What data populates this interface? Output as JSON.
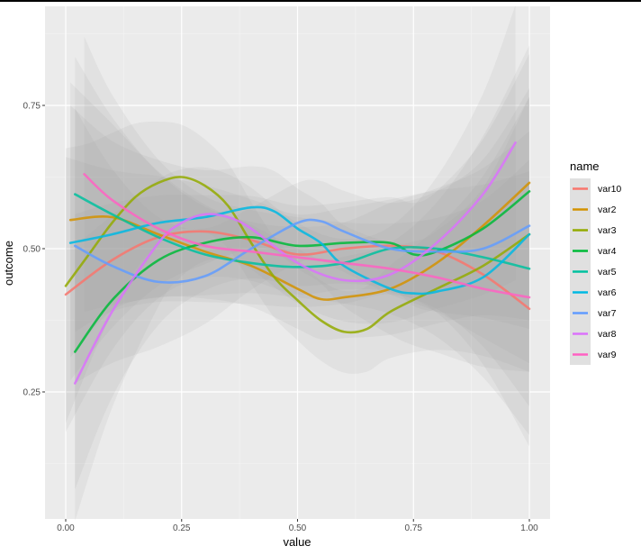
{
  "chart_data": {
    "type": "line",
    "xlabel": "value",
    "ylabel": "outcome",
    "xlim": [
      -0.04,
      1.04
    ],
    "ylim": [
      0.05,
      0.93
    ],
    "x_ticks": [
      0.0,
      0.25,
      0.5,
      0.75,
      1.0
    ],
    "x_tick_labels": [
      "0.00",
      "0.25",
      "0.50",
      "0.75",
      "1.00"
    ],
    "y_ticks": [
      0.25,
      0.5,
      0.75
    ],
    "y_tick_labels": [
      "0.25",
      "0.50",
      "0.75"
    ],
    "grid": true,
    "smoothing": "loess with confidence bands",
    "legend": {
      "title": "name",
      "position": "right",
      "entries": [
        "var10",
        "var2",
        "var3",
        "var4",
        "var5",
        "var6",
        "var7",
        "var8",
        "var9"
      ]
    },
    "series": [
      {
        "name": "var10",
        "color": "#F8766D",
        "x": [
          0.0,
          0.1,
          0.2,
          0.3,
          0.4,
          0.5,
          0.6,
          0.7,
          0.8,
          0.9,
          1.0
        ],
        "y": [
          0.42,
          0.48,
          0.52,
          0.53,
          0.515,
          0.49,
          0.5,
          0.505,
          0.495,
          0.455,
          0.395
        ]
      },
      {
        "name": "var2",
        "color": "#D39200",
        "x": [
          0.01,
          0.1,
          0.2,
          0.3,
          0.4,
          0.5,
          0.55,
          0.6,
          0.7,
          0.8,
          0.9,
          1.0
        ],
        "y": [
          0.55,
          0.555,
          0.525,
          0.495,
          0.47,
          0.43,
          0.412,
          0.415,
          0.43,
          0.475,
          0.54,
          0.615
        ]
      },
      {
        "name": "var3",
        "color": "#93AA00",
        "x": [
          0.0,
          0.05,
          0.1,
          0.15,
          0.2,
          0.25,
          0.3,
          0.35,
          0.4,
          0.45,
          0.5,
          0.55,
          0.6,
          0.65,
          0.7,
          0.8,
          0.9,
          1.0
        ],
        "y": [
          0.435,
          0.49,
          0.545,
          0.59,
          0.615,
          0.625,
          0.61,
          0.575,
          0.51,
          0.45,
          0.41,
          0.375,
          0.355,
          0.36,
          0.39,
          0.43,
          0.47,
          0.525
        ]
      },
      {
        "name": "var4",
        "color": "#00BA38",
        "x": [
          0.02,
          0.1,
          0.2,
          0.3,
          0.4,
          0.5,
          0.6,
          0.7,
          0.75,
          0.8,
          0.9,
          1.0
        ],
        "y": [
          0.32,
          0.41,
          0.48,
          0.51,
          0.52,
          0.505,
          0.51,
          0.51,
          0.49,
          0.495,
          0.535,
          0.6
        ]
      },
      {
        "name": "var5",
        "color": "#00C19F",
        "x": [
          0.02,
          0.1,
          0.2,
          0.3,
          0.4,
          0.5,
          0.6,
          0.7,
          0.8,
          0.9,
          1.0
        ],
        "y": [
          0.595,
          0.56,
          0.52,
          0.49,
          0.475,
          0.468,
          0.475,
          0.5,
          0.5,
          0.485,
          0.465
        ]
      },
      {
        "name": "var6",
        "color": "#00B9E3",
        "x": [
          0.01,
          0.1,
          0.2,
          0.3,
          0.4,
          0.45,
          0.5,
          0.55,
          0.6,
          0.7,
          0.75,
          0.8,
          0.9,
          1.0
        ],
        "y": [
          0.51,
          0.525,
          0.545,
          0.555,
          0.572,
          0.565,
          0.535,
          0.51,
          0.47,
          0.43,
          0.422,
          0.425,
          0.45,
          0.525
        ]
      },
      {
        "name": "var7",
        "color": "#619CFF",
        "x": [
          0.02,
          0.1,
          0.2,
          0.3,
          0.4,
          0.5,
          0.55,
          0.6,
          0.7,
          0.8,
          0.9,
          1.0
        ],
        "y": [
          0.505,
          0.47,
          0.442,
          0.452,
          0.5,
          0.545,
          0.548,
          0.53,
          0.5,
          0.495,
          0.5,
          0.54
        ]
      },
      {
        "name": "var8",
        "color": "#DB72FB",
        "x": [
          0.02,
          0.1,
          0.2,
          0.25,
          0.3,
          0.35,
          0.4,
          0.5,
          0.6,
          0.7,
          0.8,
          0.9,
          0.97
        ],
        "y": [
          0.265,
          0.39,
          0.51,
          0.545,
          0.56,
          0.555,
          0.535,
          0.475,
          0.445,
          0.455,
          0.51,
          0.595,
          0.685
        ]
      },
      {
        "name": "var9",
        "color": "#FF61C3",
        "x": [
          0.04,
          0.1,
          0.2,
          0.3,
          0.4,
          0.5,
          0.6,
          0.7,
          0.8,
          0.9,
          1.0
        ],
        "y": [
          0.63,
          0.585,
          0.535,
          0.505,
          0.495,
          0.485,
          0.475,
          0.465,
          0.45,
          0.43,
          0.415
        ]
      }
    ]
  }
}
